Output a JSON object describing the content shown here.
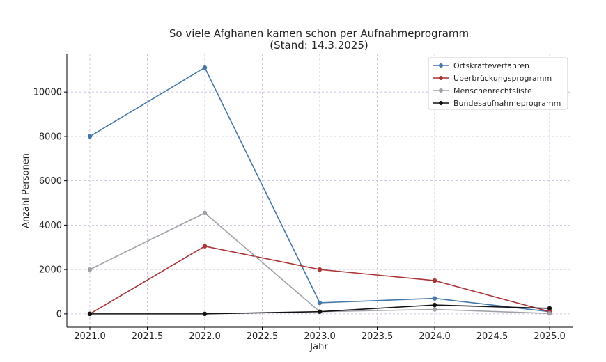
{
  "chart_data": {
    "type": "line",
    "title": "So viele Afghanen kamen schon per Aufnahmeprogramm",
    "subtitle": "(Stand: 14.3.2025)",
    "xlabel": "Jahr",
    "ylabel": "Anzahl Personen",
    "x": [
      2021,
      2022,
      2023,
      2024,
      2025
    ],
    "xlim": [
      2020.8,
      2025.2
    ],
    "ylim": [
      -600,
      11700
    ],
    "xticks": [
      2021.0,
      2021.5,
      2022.0,
      2022.5,
      2023.0,
      2023.5,
      2024.0,
      2024.5,
      2025.0
    ],
    "xtick_labels": [
      "2021.0",
      "2021.5",
      "2022.0",
      "2022.5",
      "2023.0",
      "2023.5",
      "2024.0",
      "2024.5",
      "2025.0"
    ],
    "yticks": [
      0,
      2000,
      4000,
      6000,
      8000,
      10000
    ],
    "ytick_labels": [
      "0",
      "2000",
      "4000",
      "6000",
      "8000",
      "10000"
    ],
    "grid": true,
    "legend_position": "top-right",
    "series": [
      {
        "name": "Ortskräfteverfahren",
        "color": "#4477aa",
        "values": [
          8000,
          11100,
          500,
          700,
          100
        ]
      },
      {
        "name": "Überbrückungsprogramm",
        "color": "#aa3333",
        "values": [
          0,
          3050,
          2000,
          1500,
          100
        ]
      },
      {
        "name": "Menschenrechtsliste",
        "color": "#a0a0a8",
        "values": [
          2000,
          4550,
          100,
          200,
          20
        ]
      },
      {
        "name": "Bundesaufnahmeprogramm",
        "color": "#111111",
        "values": [
          0,
          0,
          100,
          400,
          250
        ]
      }
    ]
  }
}
